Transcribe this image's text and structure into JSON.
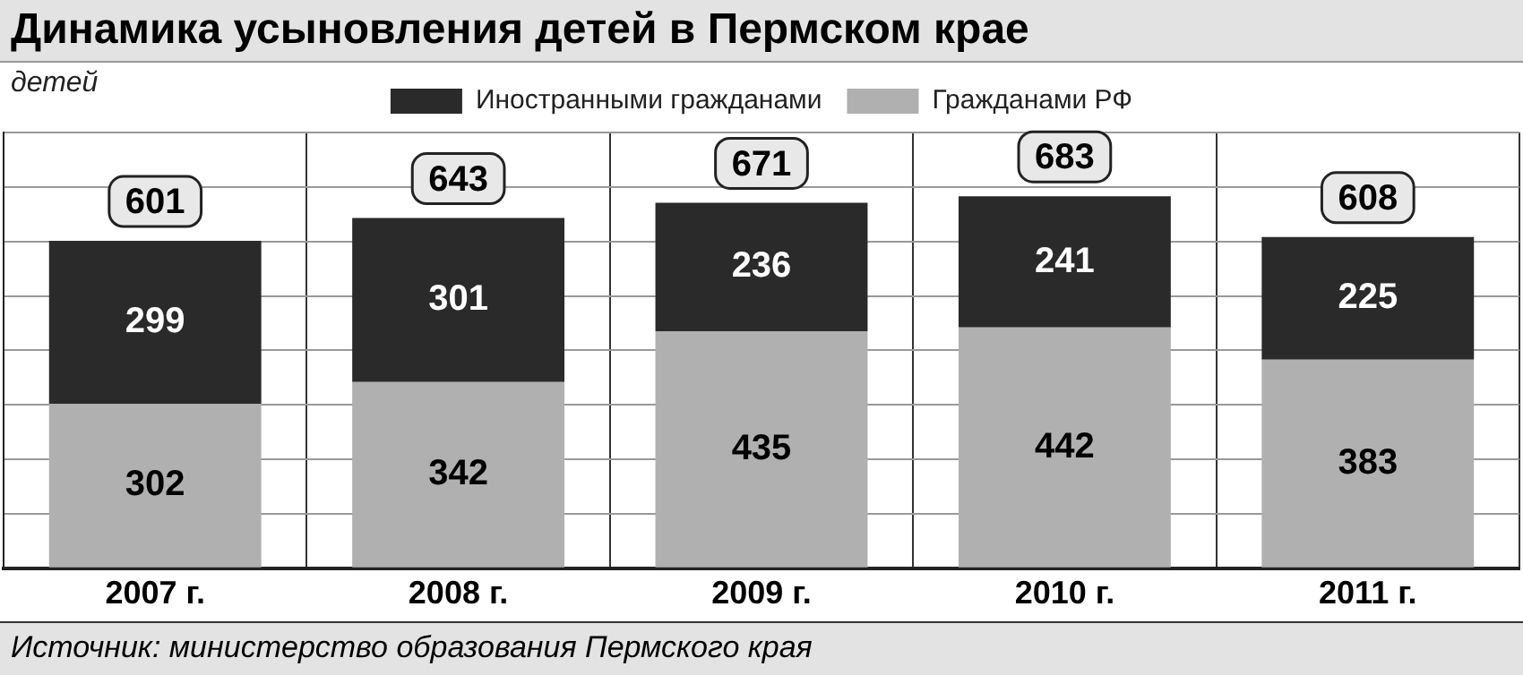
{
  "chart_data": {
    "type": "bar",
    "stacked": true,
    "title": "Динамика усыновления детей в Пермском крае",
    "ylabel": "детей",
    "categories": [
      "2007 г.",
      "2008 г.",
      "2009 г.",
      "2010 г.",
      "2011 г."
    ],
    "series": [
      {
        "name": "Гражданами РФ",
        "color": "#b0b0b0",
        "values": [
          302,
          342,
          435,
          442,
          383
        ]
      },
      {
        "name": "Иностранными гражданами",
        "color": "#2a2a2a",
        "values": [
          299,
          301,
          236,
          241,
          225
        ]
      }
    ],
    "totals": [
      "601",
      "643",
      "671",
      "683",
      "608"
    ],
    "data_labels": true,
    "ylim": [
      0,
      800
    ],
    "yticks": [
      {
        "value": 0,
        "label": null
      },
      {
        "value": 100,
        "label": null
      },
      {
        "value": 200,
        "label": null
      },
      {
        "value": 300,
        "label": null
      },
      {
        "value": 400,
        "label": null
      },
      {
        "value": 500,
        "label": null
      },
      {
        "value": 600,
        "label": null
      },
      {
        "value": 700,
        "label": null
      },
      {
        "value": 800,
        "label": null
      }
    ],
    "grid": true,
    "legend": "top",
    "annotations": [
      "Источник: министерство образования Пермского края"
    ]
  }
}
